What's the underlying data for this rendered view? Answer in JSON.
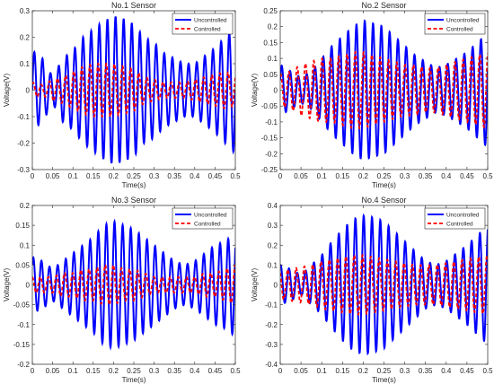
{
  "figure": {
    "background": "#ffffff"
  },
  "colors": {
    "uncontrolled": "#0000ff",
    "controlled": "#ff0000",
    "axis": "#262626"
  },
  "chart_data": [
    {
      "type": "line",
      "title": "No.1 Sensor",
      "xlabel": "Time(s)",
      "ylabel": "Voltage(V)",
      "xlim": [
        0,
        0.5
      ],
      "ylim": [
        -0.3,
        0.3
      ],
      "xticks": [
        0,
        0.05,
        0.1,
        0.15,
        0.2,
        0.25,
        0.3,
        0.35,
        0.4,
        0.45,
        0.5
      ],
      "xtick_labels": [
        "0",
        "0.05",
        "0.1",
        "0.15",
        "0.2",
        "0.25",
        "0.3",
        "0.35",
        "0.4",
        "0.45",
        "0.5"
      ],
      "yticks": [
        -0.3,
        -0.2,
        -0.1,
        0,
        0.1,
        0.2,
        0.3
      ],
      "ytick_labels": [
        "-0.3",
        "-0.2",
        "-0.1",
        "0",
        "0.1",
        "0.2",
        "0.3"
      ],
      "grid": false,
      "legend_position": "top-right",
      "series": [
        {
          "name": "Uncontrolled",
          "color": "#0000ff",
          "style": "solid",
          "x": [
            0,
            0.025,
            0.05,
            0.075,
            0.1,
            0.125,
            0.15,
            0.175,
            0.2,
            0.225,
            0.25,
            0.275,
            0.3,
            0.325,
            0.35,
            0.375,
            0.4,
            0.425,
            0.45,
            0.475,
            0.5
          ],
          "amplitude": [
            0.15,
            0.12,
            0.05,
            0.12,
            0.15,
            0.2,
            0.23,
            0.26,
            0.28,
            0.27,
            0.25,
            0.2,
            0.18,
            0.14,
            0.12,
            0.1,
            0.1,
            0.13,
            0.16,
            0.2,
            0.24
          ],
          "frequency_hz": 50
        },
        {
          "name": "Controlled",
          "color": "#ff0000",
          "style": "dashed",
          "x": [
            0,
            0.025,
            0.05,
            0.075,
            0.1,
            0.125,
            0.15,
            0.175,
            0.2,
            0.225,
            0.25,
            0.275,
            0.3,
            0.325,
            0.35,
            0.375,
            0.4,
            0.425,
            0.45,
            0.475,
            0.5
          ],
          "amplitude": [
            0.03,
            0.02,
            0.04,
            0.05,
            0.07,
            0.09,
            0.1,
            0.1,
            0.1,
            0.09,
            0.08,
            0.05,
            0.04,
            0.03,
            0.03,
            0.03,
            0.04,
            0.05,
            0.06,
            0.07,
            0.06
          ],
          "frequency_hz": 50
        }
      ]
    },
    {
      "type": "line",
      "title": "No.2 Sensor",
      "xlabel": "Time(s)",
      "ylabel": "Voltage(V)",
      "xlim": [
        0,
        0.5
      ],
      "ylim": [
        -0.25,
        0.25
      ],
      "xticks": [
        0,
        0.05,
        0.1,
        0.15,
        0.2,
        0.25,
        0.3,
        0.35,
        0.4,
        0.45,
        0.5
      ],
      "xtick_labels": [
        "0",
        "0.05",
        "0.1",
        "0.15",
        "0.2",
        "0.25",
        "0.3",
        "0.35",
        "0.4",
        "0.45",
        "0.5"
      ],
      "yticks": [
        -0.25,
        -0.2,
        -0.15,
        -0.1,
        -0.05,
        0,
        0.05,
        0.1,
        0.15,
        0.2,
        0.25
      ],
      "ytick_labels": [
        "-0.25",
        "-0.2",
        "-0.15",
        "-0.1",
        "-0.05",
        "0",
        "0.05",
        "0.1",
        "0.15",
        "0.2",
        "0.25"
      ],
      "grid": false,
      "legend_position": "top-right",
      "series": [
        {
          "name": "Uncontrolled",
          "color": "#0000ff",
          "style": "solid",
          "x": [
            0,
            0.025,
            0.05,
            0.075,
            0.1,
            0.125,
            0.15,
            0.175,
            0.2,
            0.225,
            0.25,
            0.275,
            0.3,
            0.325,
            0.35,
            0.375,
            0.4,
            0.425,
            0.45,
            0.475,
            0.5
          ],
          "amplitude": [
            0.08,
            0.06,
            0.04,
            0.06,
            0.1,
            0.14,
            0.17,
            0.2,
            0.22,
            0.21,
            0.2,
            0.17,
            0.14,
            0.11,
            0.09,
            0.07,
            0.08,
            0.1,
            0.12,
            0.15,
            0.18
          ],
          "frequency_hz": 50
        },
        {
          "name": "Controlled",
          "color": "#ff0000",
          "style": "dashed",
          "x": [
            0,
            0.025,
            0.05,
            0.075,
            0.1,
            0.125,
            0.15,
            0.175,
            0.2,
            0.225,
            0.25,
            0.275,
            0.3,
            0.325,
            0.35,
            0.375,
            0.4,
            0.425,
            0.45,
            0.475,
            0.5
          ],
          "amplitude": [
            0.05,
            0.06,
            0.08,
            0.09,
            0.1,
            0.1,
            0.11,
            0.12,
            0.12,
            0.11,
            0.1,
            0.09,
            0.08,
            0.08,
            0.07,
            0.07,
            0.08,
            0.09,
            0.1,
            0.11,
            0.12
          ],
          "frequency_hz": 50
        }
      ]
    },
    {
      "type": "line",
      "title": "No.3 Sensor",
      "xlabel": "Time(s)",
      "ylabel": "Voltage(V)",
      "xlim": [
        0,
        0.5
      ],
      "ylim": [
        -0.2,
        0.2
      ],
      "xticks": [
        0,
        0.05,
        0.1,
        0.15,
        0.2,
        0.25,
        0.3,
        0.35,
        0.4,
        0.45,
        0.5
      ],
      "xtick_labels": [
        "0",
        "0.05",
        "0.1",
        "0.15",
        "0.2",
        "0.25",
        "0.3",
        "0.35",
        "0.4",
        "0.45",
        "0.5"
      ],
      "yticks": [
        -0.2,
        -0.15,
        -0.1,
        -0.05,
        0,
        0.05,
        0.1,
        0.15,
        0.2
      ],
      "ytick_labels": [
        "-0.2",
        "-0.15",
        "-0.1",
        "-0.05",
        "0",
        "0.05",
        "0.1",
        "0.15",
        "0.2"
      ],
      "grid": false,
      "legend_position": "top-right",
      "series": [
        {
          "name": "Uncontrolled",
          "color": "#0000ff",
          "style": "solid",
          "x": [
            0,
            0.025,
            0.05,
            0.075,
            0.1,
            0.125,
            0.15,
            0.175,
            0.2,
            0.225,
            0.25,
            0.275,
            0.3,
            0.325,
            0.35,
            0.375,
            0.4,
            0.425,
            0.45,
            0.475,
            0.5
          ],
          "amplitude": [
            0.07,
            0.06,
            0.04,
            0.06,
            0.08,
            0.1,
            0.12,
            0.15,
            0.16,
            0.15,
            0.14,
            0.12,
            0.1,
            0.08,
            0.06,
            0.05,
            0.06,
            0.08,
            0.1,
            0.11,
            0.13
          ],
          "frequency_hz": 50
        },
        {
          "name": "Controlled",
          "color": "#ff0000",
          "style": "dashed",
          "x": [
            0,
            0.025,
            0.05,
            0.075,
            0.1,
            0.125,
            0.15,
            0.175,
            0.2,
            0.225,
            0.25,
            0.275,
            0.3,
            0.325,
            0.35,
            0.375,
            0.4,
            0.425,
            0.45,
            0.475,
            0.5
          ],
          "amplitude": [
            0.02,
            0.02,
            0.02,
            0.03,
            0.03,
            0.04,
            0.04,
            0.05,
            0.05,
            0.04,
            0.04,
            0.03,
            0.02,
            0.02,
            0.02,
            0.02,
            0.02,
            0.03,
            0.03,
            0.04,
            0.05
          ],
          "frequency_hz": 50
        }
      ]
    },
    {
      "type": "line",
      "title": "No.4 Sensor",
      "xlabel": "Time(s)",
      "ylabel": "Voltage(V)",
      "xlim": [
        0,
        0.5
      ],
      "ylim": [
        -0.4,
        0.4
      ],
      "xticks": [
        0,
        0.05,
        0.1,
        0.15,
        0.2,
        0.25,
        0.3,
        0.35,
        0.4,
        0.45,
        0.5
      ],
      "xtick_labels": [
        "0",
        "0.05",
        "0.1",
        "0.15",
        "0.2",
        "0.25",
        "0.3",
        "0.35",
        "0.4",
        "0.45",
        "0.5"
      ],
      "yticks": [
        -0.4,
        -0.3,
        -0.2,
        -0.1,
        0,
        0.1,
        0.2,
        0.3,
        0.4
      ],
      "ytick_labels": [
        "-0.4",
        "-0.3",
        "-0.2",
        "-0.1",
        "0",
        "0.1",
        "0.2",
        "0.3",
        "0.4"
      ],
      "grid": false,
      "legend_position": "top-right",
      "series": [
        {
          "name": "Uncontrolled",
          "color": "#0000ff",
          "style": "solid",
          "x": [
            0,
            0.025,
            0.05,
            0.075,
            0.1,
            0.125,
            0.15,
            0.175,
            0.2,
            0.225,
            0.25,
            0.275,
            0.3,
            0.325,
            0.35,
            0.375,
            0.4,
            0.425,
            0.45,
            0.475,
            0.5
          ],
          "amplitude": [
            0.1,
            0.08,
            0.05,
            0.1,
            0.15,
            0.22,
            0.28,
            0.33,
            0.35,
            0.34,
            0.32,
            0.27,
            0.22,
            0.17,
            0.12,
            0.1,
            0.12,
            0.16,
            0.2,
            0.25,
            0.3
          ],
          "frequency_hz": 50
        },
        {
          "name": "Controlled",
          "color": "#ff0000",
          "style": "dashed",
          "x": [
            0,
            0.025,
            0.05,
            0.075,
            0.1,
            0.125,
            0.15,
            0.175,
            0.2,
            0.225,
            0.25,
            0.275,
            0.3,
            0.325,
            0.35,
            0.375,
            0.4,
            0.425,
            0.45,
            0.475,
            0.5
          ],
          "amplitude": [
            0.07,
            0.08,
            0.09,
            0.1,
            0.12,
            0.13,
            0.14,
            0.15,
            0.15,
            0.14,
            0.13,
            0.12,
            0.11,
            0.1,
            0.1,
            0.1,
            0.11,
            0.12,
            0.13,
            0.14,
            0.15
          ],
          "frequency_hz": 50
        }
      ]
    }
  ]
}
